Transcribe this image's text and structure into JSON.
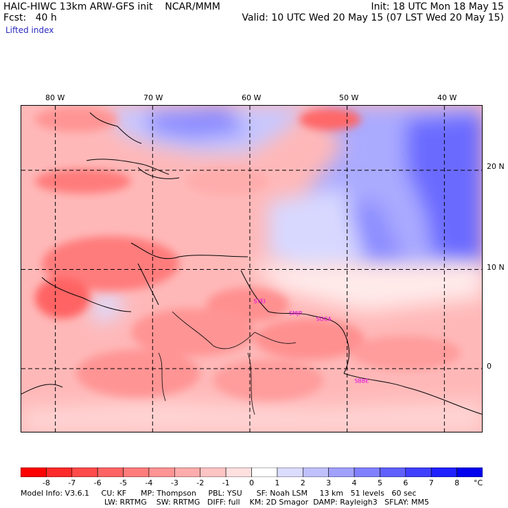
{
  "header": {
    "left_line1": "HAIC-HIWC 13km ARW-GFS init    NCAR/MMM",
    "left_line2": "Fcst:   40 h",
    "left_line3": "Lifted index",
    "right_line1": "Init: 18 UTC Mon 18 May 15",
    "right_line2": "Valid: 10 UTC Wed 20 May 15 (07 LST Wed 20 May 15)"
  },
  "map": {
    "lon_labels": [
      "80 W",
      "70 W",
      "60 W",
      "50 W",
      "40 W"
    ],
    "lat_labels": [
      "20 N",
      "10 N",
      "0"
    ],
    "lon_values": [
      -80,
      -70,
      -60,
      -50,
      -40
    ],
    "lat_values": [
      20,
      10,
      0
    ],
    "lon_range": [
      -83.5,
      -36
    ],
    "lat_range": [
      -6.5,
      26.5
    ],
    "stations": [
      {
        "code": "SYEI",
        "lon": -59.0,
        "lat": 6.6
      },
      {
        "code": "SMJP",
        "lon": -55.3,
        "lat": 5.4
      },
      {
        "code": "SOCA",
        "lon": -52.4,
        "lat": 4.8
      },
      {
        "code": "SBBE",
        "lon": -48.5,
        "lat": -1.4
      }
    ],
    "station_color": "#e000e0"
  },
  "colorbar": {
    "labels": [
      "-8",
      "-7",
      "-6",
      "-5",
      "-4",
      "-3",
      "-2",
      "-1",
      "0",
      "1",
      "2",
      "3",
      "4",
      "5",
      "6",
      "7",
      "8"
    ],
    "unit": "°C",
    "colors": [
      "#ff0000",
      "#ff2a2a",
      "#ff4a4a",
      "#ff6464",
      "#ff7c7c",
      "#ff9494",
      "#ffacac",
      "#ffc4c4",
      "#ffe0e0",
      "#ffffff",
      "#dcdcff",
      "#c0c0ff",
      "#a0a0ff",
      "#8080ff",
      "#6060ff",
      "#4040ff",
      "#2020ff",
      "#0000ee"
    ]
  },
  "footer": {
    "line1": "Model Info: V3.6.1     CU: KF      MP: Thompson     PBL: YSU      SF: Noah LSM     13 km   51 levels   60 sec",
    "line2": "LW: RRTMG    SW: RRTMG   DIFF: full    KM: 2D Smagor  DAMP: Rayleigh3   SFLAY: MM5"
  }
}
